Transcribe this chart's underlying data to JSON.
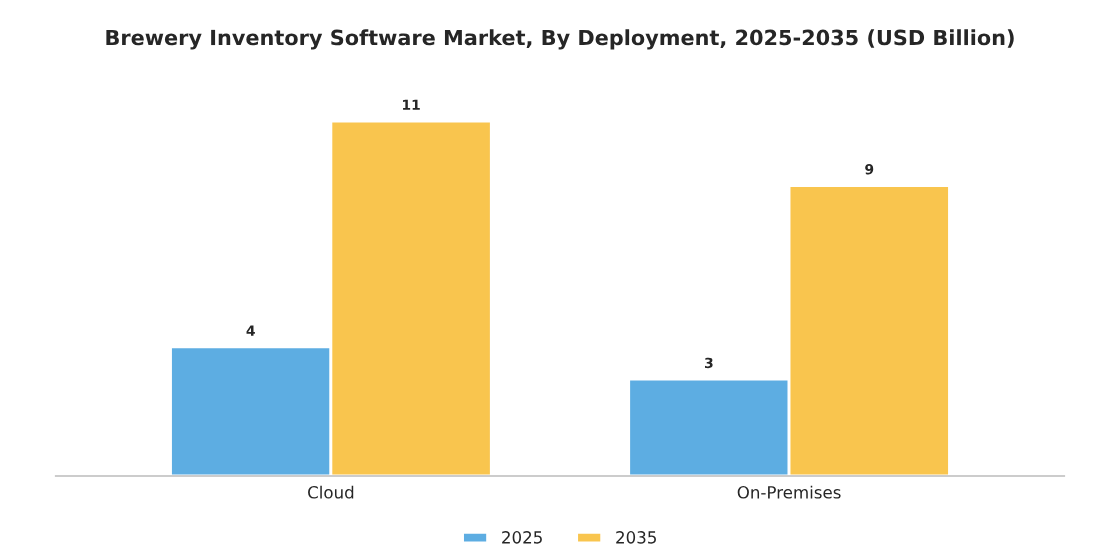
{
  "chart_data": {
    "type": "bar",
    "title": "Brewery Inventory Software Market, By Deployment, 2025-2035 (USD Billion)",
    "categories": [
      "Cloud",
      "On-Premises"
    ],
    "series": [
      {
        "name": "2025",
        "color": "#5dade2",
        "values": [
          4,
          3
        ]
      },
      {
        "name": "2035",
        "color": "#f9c54e",
        "values": [
          11,
          9
        ]
      }
    ],
    "data_labels": true,
    "legend": "bottom",
    "grid": false
  }
}
